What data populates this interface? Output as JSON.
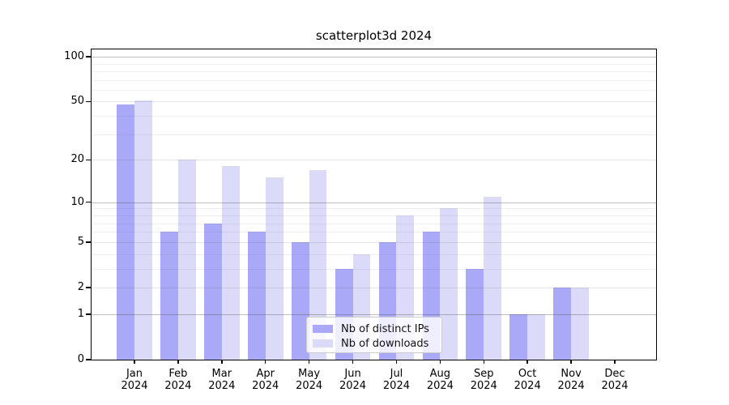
{
  "figure": {
    "background": "#ffffff",
    "text_color": "#000000"
  },
  "chart_data": {
    "type": "bar",
    "title": "scatterplot3d 2024",
    "xlabel": "",
    "ylabel": "",
    "categories": [
      "Jan",
      "Feb",
      "Mar",
      "Apr",
      "May",
      "Jun",
      "Jul",
      "Aug",
      "Sep",
      "Oct",
      "Nov",
      "Dec"
    ],
    "category_year": "2024",
    "series": [
      {
        "name": "Nb of distinct IPs",
        "color": "#a9a9f7",
        "values": [
          48,
          6,
          7,
          6,
          5,
          3,
          5,
          6,
          3,
          1,
          2,
          0
        ]
      },
      {
        "name": "Nb of downloads",
        "color": "#dbdbf9",
        "values": [
          51,
          20,
          18,
          15,
          17,
          4,
          8,
          9,
          11,
          1,
          2,
          0
        ]
      }
    ],
    "yscale": "log1p",
    "ylim": [
      0,
      112
    ],
    "yticks": [
      100,
      50,
      20,
      10,
      5,
      2,
      1,
      0
    ],
    "mid_yticks": [
      50,
      20,
      5,
      2
    ],
    "power_yticks": [
      100,
      10,
      1
    ],
    "minor_yticks": [
      3,
      4,
      6,
      7,
      8,
      9,
      30,
      40,
      60,
      70,
      80,
      90
    ],
    "grid": "on",
    "legend_position": "lower center",
    "colors": {
      "grid_power": "rgba(70,70,70,0.35)",
      "grid_mid": "rgba(70,70,70,0.14)",
      "grid_minor": "rgba(70,70,70,0.08)",
      "spine": "#000000"
    }
  }
}
